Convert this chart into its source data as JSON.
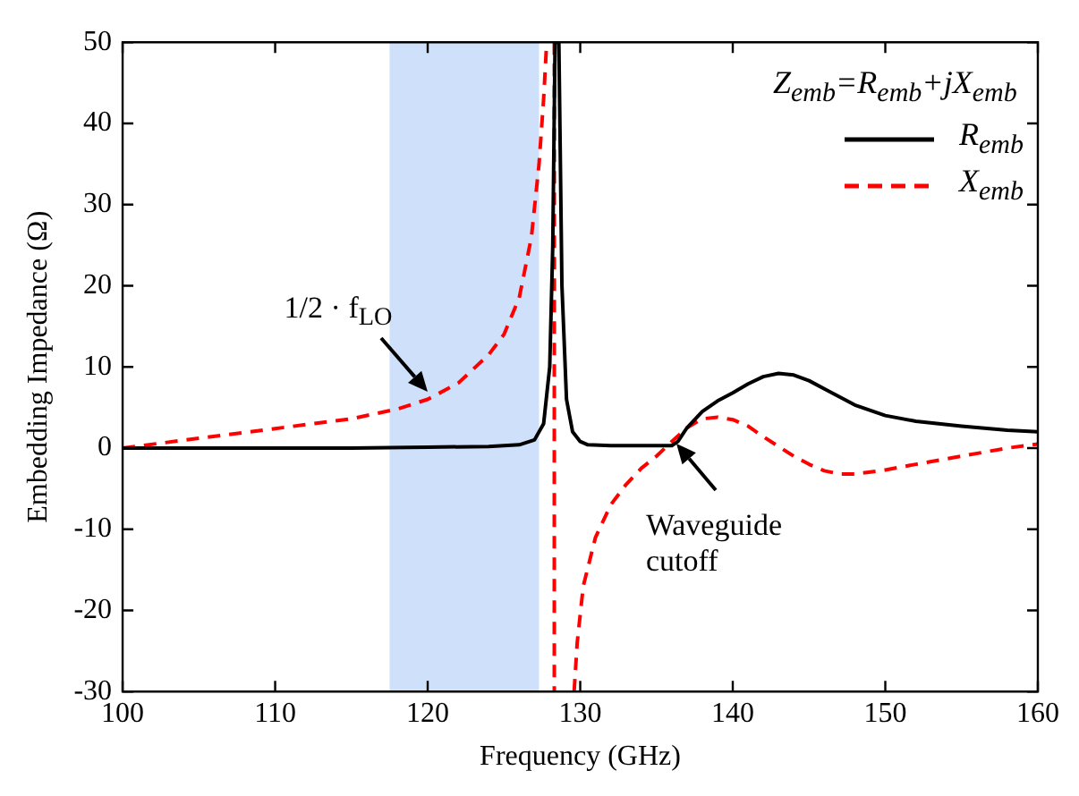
{
  "chart_data": {
    "type": "line",
    "xlabel": "Frequency (GHz)",
    "ylabel": "Embedding Impedance (Ω)",
    "legend_title": "Z$_{emb}$=R$_{emb}$+jX$_{emb}$",
    "legend": "top right",
    "grid": false,
    "xlim": [
      100,
      160
    ],
    "ylim": [
      -30,
      50
    ],
    "xticks": [
      100,
      110,
      120,
      130,
      140,
      150,
      160
    ],
    "yticks": [
      -30,
      -20,
      -10,
      0,
      10,
      20,
      30,
      40,
      50
    ],
    "series": [
      {
        "name": "R$_{emb}$",
        "color": "#000000",
        "line_style": "solid",
        "x": [
          100,
          105,
          110,
          115,
          120,
          124,
          126,
          127,
          127.6,
          128,
          128.2,
          128.35,
          128.6,
          128.8,
          129.1,
          129.5,
          130,
          130.5,
          132,
          134,
          136,
          136.4,
          137,
          138,
          139,
          140,
          141,
          142,
          143,
          144,
          145,
          146,
          148,
          150,
          152,
          155,
          158,
          160
        ],
        "values": [
          0,
          0,
          0,
          0,
          0.1,
          0.2,
          0.4,
          1,
          3,
          10,
          25,
          50,
          50,
          20,
          6,
          2,
          0.8,
          0.4,
          0.3,
          0.3,
          0.3,
          0.8,
          2.5,
          4.5,
          5.8,
          6.8,
          7.9,
          8.8,
          9.2,
          9,
          8.3,
          7.3,
          5.3,
          4,
          3.3,
          2.7,
          2.2,
          2
        ]
      },
      {
        "name": "X$_{emb}$",
        "color": "#ff0000",
        "line_style": "dashed",
        "x": [
          100,
          105,
          110,
          115,
          118,
          120,
          122,
          124,
          125,
          126,
          126.8,
          127.3,
          127.6,
          127.8,
          null,
          128.3,
          128.3,
          null,
          129.6,
          129.8,
          130.2,
          131,
          132,
          133,
          134,
          135,
          136,
          137,
          138,
          139,
          140,
          141,
          142,
          143,
          144,
          145,
          146,
          147,
          148,
          150,
          152,
          155,
          158,
          160
        ],
        "values": [
          0,
          1.2,
          2.4,
          3.6,
          4.8,
          6,
          8,
          11.5,
          14,
          18.5,
          26,
          35,
          43,
          50,
          null,
          50,
          -30,
          null,
          -30,
          -24,
          -17,
          -11,
          -7,
          -4.5,
          -2.5,
          -1,
          0.8,
          2.5,
          3.6,
          3.8,
          3.5,
          2.7,
          1.4,
          0.2,
          -1,
          -2,
          -2.8,
          -3.2,
          -3.2,
          -2.7,
          -2,
          -1,
          0,
          0.5
        ]
      }
    ],
    "bands": [
      {
        "axis": "x",
        "from": 117.5,
        "to": 127.3,
        "color": "#cfe0fb"
      }
    ],
    "annotations": [
      {
        "text": "1/2 · f$_{LO}$",
        "x": 120,
        "y": 7
      },
      {
        "text": "Waveguide cutoff",
        "x": 136.3,
        "y": 0.6
      }
    ]
  }
}
